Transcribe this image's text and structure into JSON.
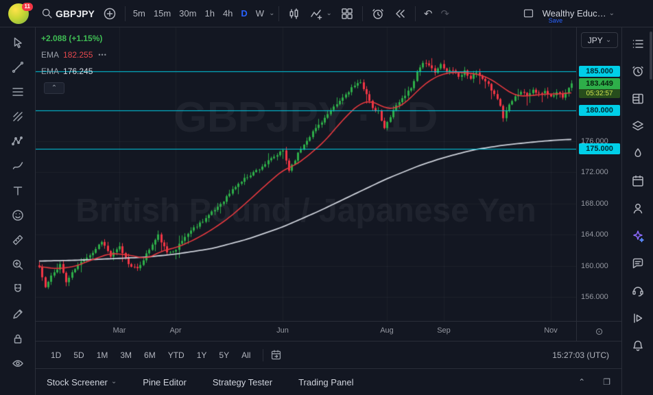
{
  "glyphs": {
    "chevron_down": "⌄",
    "caret_up": "⌃",
    "more": "•••",
    "undo": "↶",
    "redo": "↷",
    "restore": "❐",
    "session": "⊙"
  },
  "colors": {
    "accent": "#2962ff",
    "up": "#2eae49",
    "down": "#f23645",
    "level": "#00cfe8",
    "ema_fast": "#e5393f",
    "ema_slow": "#cfd3dc",
    "last_label": "#2eae49"
  },
  "topbar": {
    "logo_badge": "11",
    "symbol": "GBPJPY",
    "timeframes": [
      "5m",
      "15m",
      "30m",
      "1h",
      "4h",
      "D",
      "W"
    ],
    "active_timeframe": "D",
    "layout_name": "Wealthy Educ…",
    "save_label": "Save",
    "icons": [
      "search-icon",
      "add-symbol-icon",
      "chart-type-candles-icon",
      "indicators-icon",
      "grid-layout-icon",
      "alert-clock-icon",
      "bar-replay-icon",
      "undo-icon",
      "redo-icon",
      "layout-select-icon"
    ]
  },
  "left_toolbar": {
    "tools": [
      "cursor",
      "trend-line",
      "fib-retracement",
      "pitchfork",
      "xabcd-pattern",
      "brush",
      "text",
      "emoji",
      "measure-ruler",
      "zoom",
      "magnet",
      "draw-pencil",
      "lock-all",
      "hide-all-eye"
    ]
  },
  "right_sidebar": {
    "items": [
      "watchlist",
      "alerts",
      "data-window",
      "object-tree",
      "hotlist",
      "calendar",
      "ideas-people",
      "ai-assistant",
      "chat",
      "help-support",
      "publish",
      "notifications-bell"
    ]
  },
  "legend": {
    "change": "+2.088 (+1.15%)",
    "ema_fast": {
      "label": "EMA",
      "value": "182.255"
    },
    "ema_slow": {
      "label": "EMA",
      "value": "176.245"
    }
  },
  "watermark": {
    "line1": "GBPJPY · 1D",
    "line2": "British Pound / Japanese Yen"
  },
  "price_axis": {
    "currency": "JPY",
    "ticks": [
      "176.000",
      "172.000",
      "168.000",
      "164.000",
      "160.000",
      "156.000"
    ],
    "levels": [
      "185.000",
      "180.000",
      "175.000"
    ],
    "last": {
      "price": "183.449",
      "countdown": "05:32:57"
    }
  },
  "range_row": {
    "ranges": [
      "1D",
      "5D",
      "1M",
      "3M",
      "6M",
      "YTD",
      "1Y",
      "5Y",
      "All"
    ],
    "clock": "15:27:03 (UTC)"
  },
  "footer": {
    "items": [
      "Stock Screener",
      "Pine Editor",
      "Strategy Tester",
      "Trading Panel"
    ]
  },
  "chart_data": {
    "type": "candlestick",
    "symbol": "GBPJPY",
    "interval": "1D",
    "last_price": 183.449,
    "change": "+2.088 (+1.15%)",
    "ylim": [
      154.5,
      188.5
    ],
    "y_ticks": [
      176,
      172,
      168,
      164,
      160,
      156
    ],
    "horizontal_levels": [
      185,
      180,
      175
    ],
    "legend_position": "top-left",
    "grid": "faint",
    "candle_count": 180,
    "time_labels": [
      {
        "label": "Mar",
        "index": 27
      },
      {
        "label": "Apr",
        "index": 46
      },
      {
        "label": "Jun",
        "index": 82
      },
      {
        "label": "Aug",
        "index": 117
      },
      {
        "label": "Sep",
        "index": 136
      },
      {
        "label": "Nov",
        "index": 172
      }
    ],
    "close_path": [
      [
        0,
        159.8
      ],
      [
        2,
        157.2
      ],
      [
        4,
        158.6
      ],
      [
        7,
        160.2
      ],
      [
        9,
        157.9
      ],
      [
        12,
        159.6
      ],
      [
        15,
        160.9
      ],
      [
        18,
        161.7
      ],
      [
        21,
        163.2
      ],
      [
        24,
        161.2
      ],
      [
        27,
        162.4
      ],
      [
        30,
        160.3
      ],
      [
        33,
        159.5
      ],
      [
        36,
        161.5
      ],
      [
        40,
        163.9
      ],
      [
        43,
        161.6
      ],
      [
        46,
        162.2
      ],
      [
        50,
        164.2
      ],
      [
        54,
        165.5
      ],
      [
        58,
        166.8
      ],
      [
        62,
        168.4
      ],
      [
        66,
        170.2
      ],
      [
        70,
        171.5
      ],
      [
        74,
        172.5
      ],
      [
        78,
        173.7
      ],
      [
        82,
        174.8
      ],
      [
        84,
        172.3
      ],
      [
        87,
        174.4
      ],
      [
        90,
        176.2
      ],
      [
        93,
        177.7
      ],
      [
        96,
        179.0
      ],
      [
        99,
        180.3
      ],
      [
        102,
        181.6
      ],
      [
        105,
        182.9
      ],
      [
        108,
        183.5
      ],
      [
        110,
        182.2
      ],
      [
        112,
        180.1
      ],
      [
        114,
        179.8
      ],
      [
        116,
        177.6
      ],
      [
        119,
        180.1
      ],
      [
        122,
        181.5
      ],
      [
        125,
        182.9
      ],
      [
        127,
        184.9
      ],
      [
        129,
        186.2
      ],
      [
        131,
        185.6
      ],
      [
        133,
        185.0
      ],
      [
        135,
        185.8
      ],
      [
        137,
        184.9
      ],
      [
        139,
        185.3
      ],
      [
        141,
        184.3
      ],
      [
        143,
        185.0
      ],
      [
        145,
        184.2
      ],
      [
        147,
        184.8
      ],
      [
        149,
        183.9
      ],
      [
        151,
        183.2
      ],
      [
        153,
        182.2
      ],
      [
        155,
        180.6
      ],
      [
        156,
        179.0
      ],
      [
        158,
        180.9
      ],
      [
        160,
        181.8
      ],
      [
        162,
        182.4
      ],
      [
        164,
        181.9
      ],
      [
        166,
        182.6
      ],
      [
        168,
        182.0
      ],
      [
        170,
        182.5
      ],
      [
        172,
        181.7
      ],
      [
        174,
        182.3
      ],
      [
        176,
        181.8
      ],
      [
        178,
        183.0
      ],
      [
        179,
        183.449
      ]
    ],
    "ema_fast": {
      "label": "EMA",
      "value": 182.255,
      "path": [
        [
          0,
          159.9
        ],
        [
          6,
          159.6
        ],
        [
          12,
          159.9
        ],
        [
          18,
          160.8
        ],
        [
          24,
          161.6
        ],
        [
          30,
          161.4
        ],
        [
          36,
          160.9
        ],
        [
          42,
          162.0
        ],
        [
          46,
          162.3
        ],
        [
          52,
          163.3
        ],
        [
          58,
          164.6
        ],
        [
          64,
          166.2
        ],
        [
          70,
          168.2
        ],
        [
          76,
          170.3
        ],
        [
          82,
          172.3
        ],
        [
          86,
          172.9
        ],
        [
          90,
          174.0
        ],
        [
          96,
          176.0
        ],
        [
          100,
          177.8
        ],
        [
          104,
          179.5
        ],
        [
          108,
          180.9
        ],
        [
          112,
          181.2
        ],
        [
          116,
          180.3
        ],
        [
          120,
          180.2
        ],
        [
          124,
          181.2
        ],
        [
          128,
          182.8
        ],
        [
          132,
          184.0
        ],
        [
          136,
          184.7
        ],
        [
          140,
          184.9
        ],
        [
          144,
          184.8
        ],
        [
          148,
          184.6
        ],
        [
          152,
          184.0
        ],
        [
          156,
          182.9
        ],
        [
          160,
          181.9
        ],
        [
          164,
          181.8
        ],
        [
          168,
          182.0
        ],
        [
          172,
          182.1
        ],
        [
          176,
          182.1
        ],
        [
          179,
          182.26
        ]
      ]
    },
    "ema_slow": {
      "label": "EMA",
      "value": 176.245,
      "path": [
        [
          0,
          160.6
        ],
        [
          12,
          160.7
        ],
        [
          24,
          160.9
        ],
        [
          36,
          161.1
        ],
        [
          46,
          161.5
        ],
        [
          58,
          162.2
        ],
        [
          70,
          163.4
        ],
        [
          82,
          165.0
        ],
        [
          94,
          167.0
        ],
        [
          106,
          169.2
        ],
        [
          117,
          171.2
        ],
        [
          128,
          172.9
        ],
        [
          136,
          173.9
        ],
        [
          146,
          174.9
        ],
        [
          156,
          175.5
        ],
        [
          166,
          175.9
        ],
        [
          172,
          176.1
        ],
        [
          179,
          176.25
        ]
      ]
    }
  }
}
